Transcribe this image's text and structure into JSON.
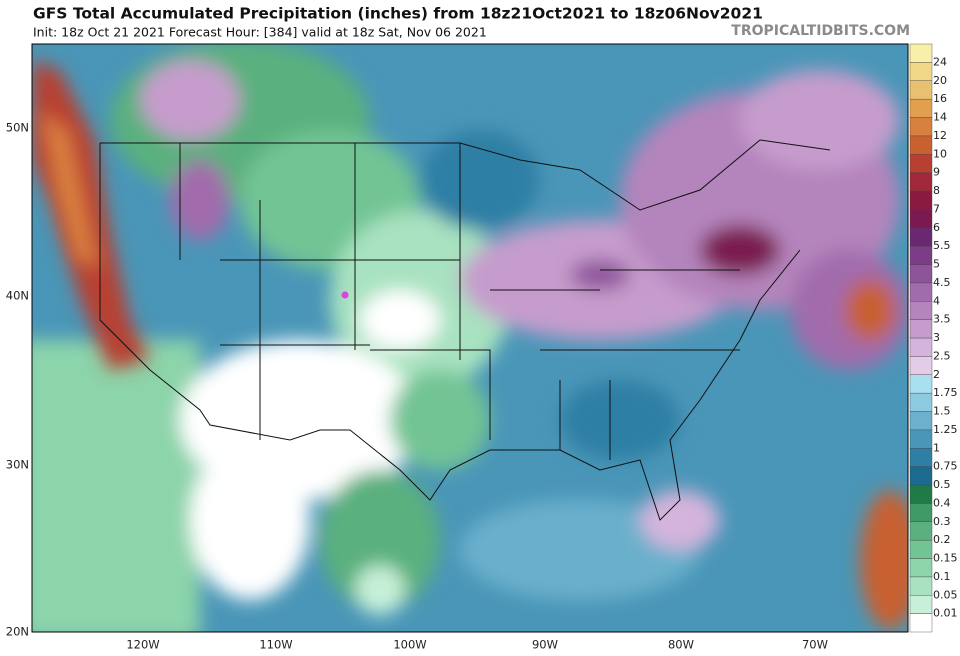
{
  "header": {
    "title": "GFS Total Accumulated Precipitation (inches) from 18z21Oct2021 to 18z06Nov2021",
    "subtitle": "Init: 18z Oct 21 2021   Forecast Hour: [384]   valid at 18z Sat, Nov 06 2021",
    "credit": "TROPICALTIDBITS.COM"
  },
  "map": {
    "lat_labels": [
      "50N",
      "40N",
      "30N",
      "20N"
    ],
    "lon_labels": [
      "120W",
      "110W",
      "100W",
      "90W",
      "80W",
      "70W"
    ]
  },
  "colorbar": {
    "labels": [
      "0.01",
      "0.05",
      "0.1",
      "0.15",
      "0.2",
      "0.3",
      "0.4",
      "0.5",
      "0.75",
      "1",
      "1.25",
      "1.5",
      "1.75",
      "2",
      "2.5",
      "3",
      "3.5",
      "4",
      "4.5",
      "5",
      "5.5",
      "6",
      "7",
      "8",
      "9",
      "10",
      "12",
      "14",
      "16",
      "20",
      "24"
    ],
    "colors": [
      "#ffffff",
      "#c8f0d8",
      "#a8e2c0",
      "#8cd4aa",
      "#72c494",
      "#5ab07e",
      "#3f9a68",
      "#1f7a48",
      "#1b6a90",
      "#2d7fa5",
      "#4a96b8",
      "#6bb0cc",
      "#8ccae0",
      "#a8e0f0",
      "#e2cce8",
      "#d4b4dc",
      "#c69ccc",
      "#b484bc",
      "#a26cac",
      "#8e549a",
      "#7c3c88",
      "#6a2870",
      "#7a1a50",
      "#8a1a40",
      "#a02838",
      "#b84030",
      "#c86030",
      "#d88040",
      "#e0a050",
      "#e8c070",
      "#f0d888",
      "#f8f0a8"
    ]
  }
}
